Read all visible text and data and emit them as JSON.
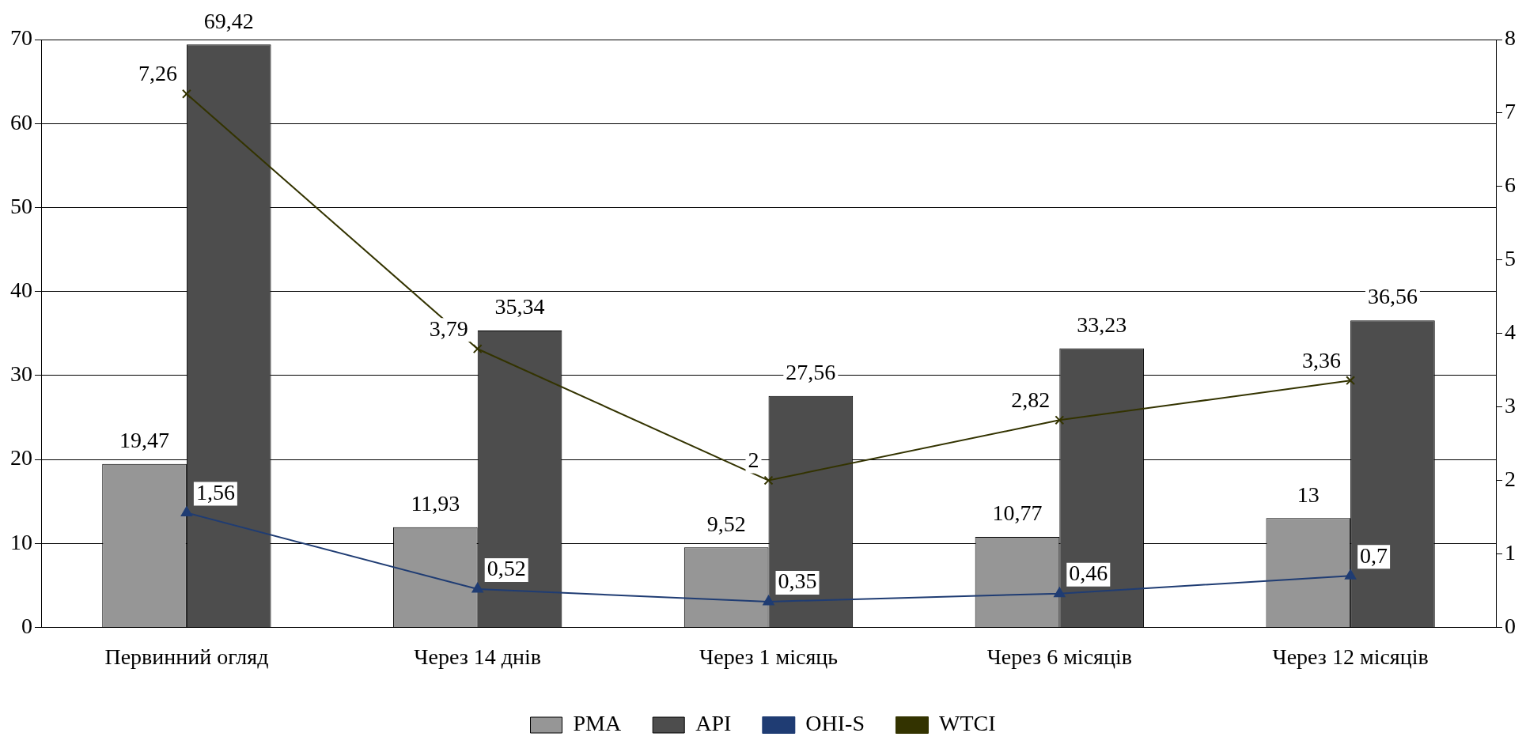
{
  "chart_data": {
    "type": "bar",
    "categories": [
      "Первинний огляд",
      "Через 14 днів",
      "Через 1 місяць",
      "Через 6 місяців",
      "Через 12 місяців"
    ],
    "series": [
      {
        "name": "PMA",
        "color": "#969696",
        "values": [
          19.47,
          11.93,
          9.52,
          10.77,
          13
        ],
        "value_labels": [
          "19,47",
          "11,93",
          "9,52",
          "10,77",
          "13"
        ]
      },
      {
        "name": "API",
        "color": "#4d4d4d",
        "values": [
          69.42,
          35.34,
          27.56,
          33.23,
          36.56
        ],
        "value_labels": [
          "69,42",
          "35,34",
          "27,56",
          "33,23",
          "36,56"
        ]
      },
      {
        "name": "OHI-S",
        "type": "line",
        "axis": "y2",
        "marker": "triangle",
        "color": "#1f3c73",
        "values": [
          1.56,
          0.52,
          0.35,
          0.46,
          0.7
        ],
        "value_labels": [
          "1,56",
          "0,52",
          "0,35",
          "0,46",
          "0,7"
        ]
      },
      {
        "name": "WTCI",
        "type": "line",
        "axis": "y2",
        "marker": "cross",
        "color": "#333300",
        "values": [
          7.26,
          3.79,
          2,
          2.82,
          3.36
        ],
        "value_labels": [
          "7,26",
          "3,79",
          "2",
          "2,82",
          "3,36"
        ]
      }
    ],
    "ylim": [
      0,
      70
    ],
    "yticks": [
      0,
      10,
      20,
      30,
      40,
      50,
      60,
      70
    ],
    "y2lim": [
      0,
      8
    ],
    "y2ticks": [
      0,
      1,
      2,
      3,
      4,
      5,
      6,
      7,
      8
    ],
    "grid": "y",
    "legend": "bottom"
  }
}
